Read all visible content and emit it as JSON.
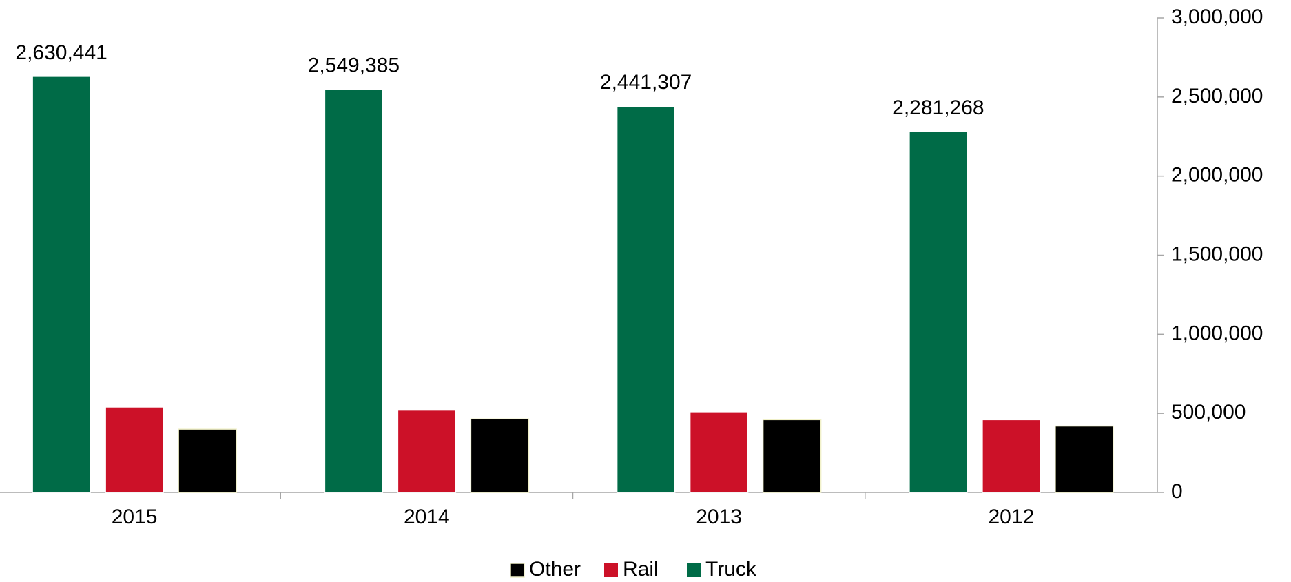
{
  "chart_data": {
    "type": "bar",
    "categories": [
      "2015",
      "2014",
      "2013",
      "2012"
    ],
    "series": [
      {
        "name": "Truck",
        "color": "#006b47",
        "values": [
          2630441,
          2549385,
          2441307,
          2281268
        ],
        "value_labels": [
          "2,630,441",
          "2,549,385",
          "2,441,307",
          "2,281,268"
        ]
      },
      {
        "name": "Rail",
        "color": "#cc1128",
        "values": [
          540000,
          520000,
          510000,
          460000
        ]
      },
      {
        "name": "Other",
        "color": "#000000",
        "values": [
          400000,
          465000,
          460000,
          420000
        ]
      }
    ],
    "legend_order": [
      "Other",
      "Rail",
      "Truck"
    ],
    "ylim": [
      0,
      3000000
    ],
    "yticks": [
      0,
      {
        "value": 500000,
        "label": "500,000"
      },
      {
        "value": 1000000,
        "label": "1,000,000"
      },
      {
        "value": 1500000,
        "label": "1,500,000"
      },
      {
        "value": 2000000,
        "label": "2,000,000"
      },
      {
        "value": 2500000,
        "label": "2,500,000"
      },
      {
        "value": 3000000,
        "label": "3,000,000"
      }
    ],
    "y_axis_side": "right",
    "legend": "bottom",
    "grid": false
  }
}
